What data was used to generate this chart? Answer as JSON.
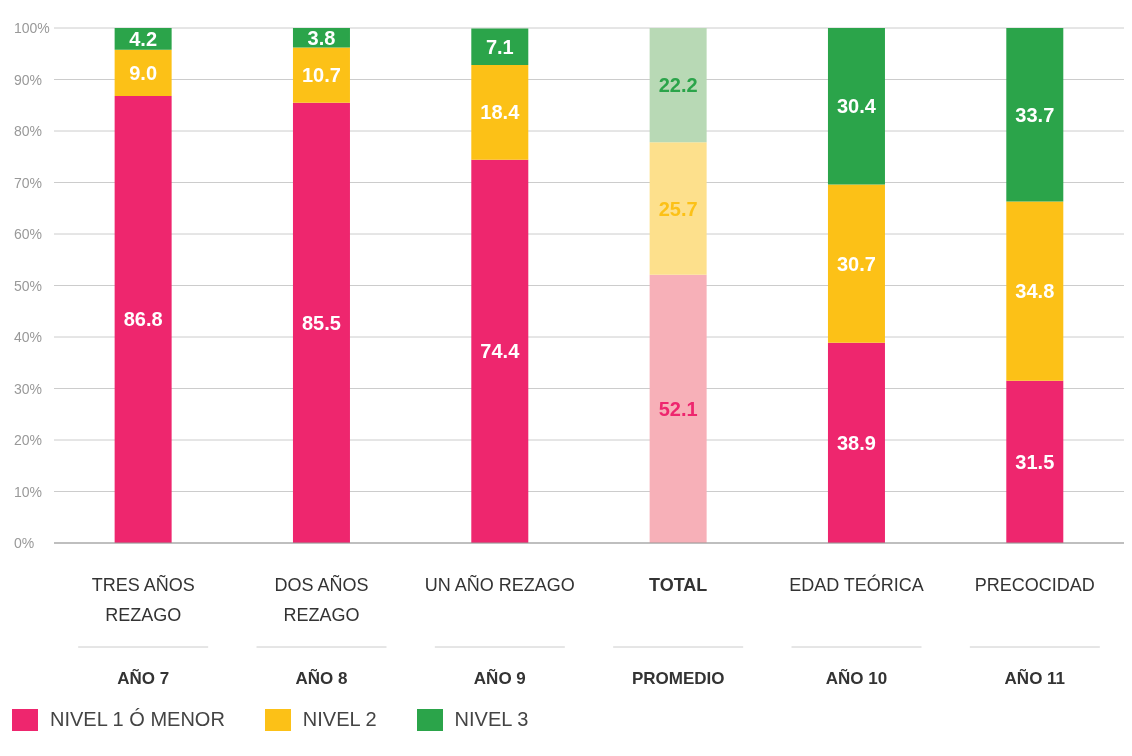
{
  "chart_data": {
    "type": "bar",
    "stacked": true,
    "categories": [
      "TRES AÑOS REZAGO",
      "DOS AÑOS REZAGO",
      "UN AÑO REZAGO",
      "TOTAL",
      "EDAD TEÓRICA",
      "PRECOCIDAD"
    ],
    "series": [
      {
        "name": "NIVEL 1 Ó MENOR",
        "color": "#ee266e",
        "colors": [
          "#ee266e",
          "#ee266e",
          "#ee266e",
          "#f7b0b8",
          "#ee266e",
          "#ee266e"
        ],
        "values": [
          86.8,
          85.5,
          74.4,
          52.1,
          38.9,
          31.5
        ],
        "value_labels": [
          "86.8",
          "85.5",
          "74.4",
          "52.1",
          "38.9",
          "31.5"
        ]
      },
      {
        "name": "NIVEL 2",
        "color": "#fcc117",
        "colors": [
          "#fcc117",
          "#fcc117",
          "#fcc117",
          "#fde08c",
          "#fcc117",
          "#fcc117"
        ],
        "values": [
          9.0,
          10.7,
          18.4,
          25.7,
          30.7,
          34.8
        ],
        "value_labels": [
          "9.0",
          "10.7",
          "18.4",
          "25.7",
          "30.7",
          "34.8"
        ]
      },
      {
        "name": "NIVEL 3",
        "color": "#2ba44a",
        "colors": [
          "#2ba44a",
          "#2ba44a",
          "#2ba44a",
          "#b8d9b5",
          "#2ba44a",
          "#2ba44a"
        ],
        "values": [
          4.2,
          3.8,
          7.1,
          22.2,
          30.4,
          33.7
        ],
        "value_labels": [
          "4.2",
          "3.8",
          "7.1",
          "22.2",
          "30.4",
          "33.7"
        ]
      }
    ],
    "ylim": [
      0,
      100
    ],
    "yticks": [
      {
        "value": 0,
        "label": "0%"
      },
      {
        "value": 10,
        "label": "10%"
      },
      {
        "value": 20,
        "label": "20%"
      },
      {
        "value": 30,
        "label": "30%"
      },
      {
        "value": 40,
        "label": "40%"
      },
      {
        "value": 50,
        "label": "50%"
      },
      {
        "value": 60,
        "label": "60%"
      },
      {
        "value": 70,
        "label": "70%"
      },
      {
        "value": 80,
        "label": "80%"
      },
      {
        "value": 90,
        "label": "90%"
      },
      {
        "value": 100,
        "label": "100%"
      }
    ],
    "grid": "y",
    "legend": "bottom left",
    "annotations": [
      "AÑO 7",
      "AÑO 8",
      "AÑO 9",
      "PROMEDIO",
      "AÑO 10",
      "AÑO 11"
    ]
  }
}
